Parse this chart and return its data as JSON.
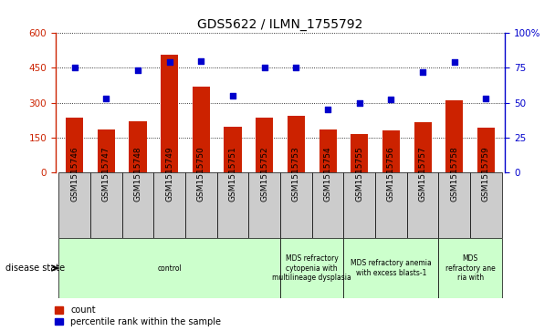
{
  "title": "GDS5622 / ILMN_1755792",
  "samples": [
    "GSM1515746",
    "GSM1515747",
    "GSM1515748",
    "GSM1515749",
    "GSM1515750",
    "GSM1515751",
    "GSM1515752",
    "GSM1515753",
    "GSM1515754",
    "GSM1515755",
    "GSM1515756",
    "GSM1515757",
    "GSM1515758",
    "GSM1515759"
  ],
  "counts": [
    235,
    185,
    220,
    505,
    370,
    195,
    235,
    245,
    185,
    165,
    180,
    215,
    310,
    190
  ],
  "percentiles": [
    75,
    53,
    73,
    79,
    80,
    55,
    75,
    75,
    45,
    50,
    52,
    72,
    79,
    53
  ],
  "bar_color": "#cc2200",
  "dot_color": "#0000cc",
  "left_ylim": [
    0,
    600
  ],
  "right_ylim": [
    0,
    100
  ],
  "left_yticks": [
    0,
    150,
    300,
    450,
    600
  ],
  "right_yticks": [
    0,
    25,
    50,
    75,
    100
  ],
  "disease_groups": [
    {
      "label": "control",
      "start": 0,
      "end": 7
    },
    {
      "label": "MDS refractory\ncytopenia with\nmultilineage dysplasia",
      "start": 7,
      "end": 9
    },
    {
      "label": "MDS refractory anemia\nwith excess blasts-1",
      "start": 9,
      "end": 12
    },
    {
      "label": "MDS\nrefractory ane\nria with",
      "start": 12,
      "end": 14
    }
  ],
  "group_cell_color": "#ccffcc",
  "sample_cell_color": "#cccccc",
  "bg_color": "#ffffff"
}
